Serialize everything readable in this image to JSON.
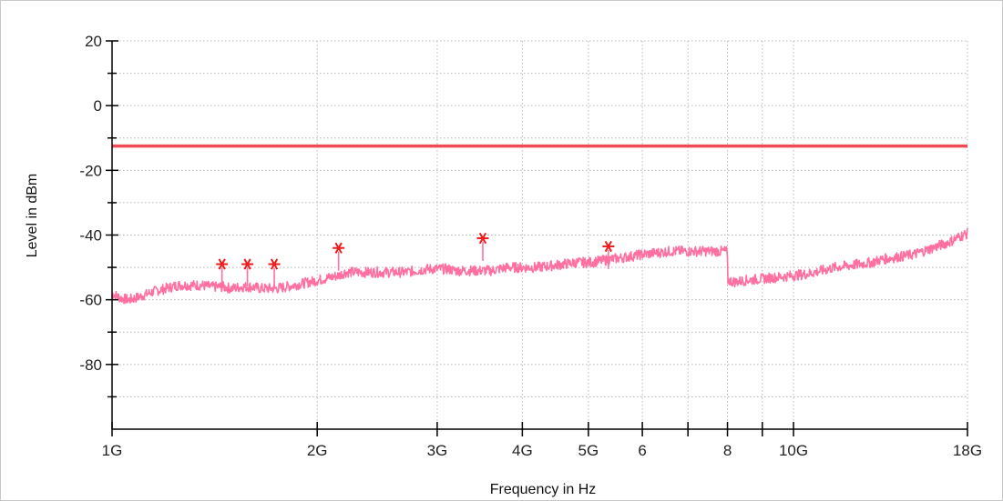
{
  "chart_data": {
    "type": "line",
    "title": "",
    "xlabel": "Frequency in Hz",
    "ylabel": "Level in dBm",
    "x_scale": "log",
    "xlim": [
      1000000000,
      18000000000
    ],
    "ylim": [
      -100,
      20
    ],
    "grid": true,
    "x_major_ticks": [
      {
        "value": 1000000000,
        "label": "1G"
      },
      {
        "value": 2000000000,
        "label": "2G"
      },
      {
        "value": 3000000000,
        "label": "3G"
      },
      {
        "value": 4000000000,
        "label": "4G"
      },
      {
        "value": 5000000000,
        "label": "5G"
      },
      {
        "value": 6000000000,
        "label": "6"
      },
      {
        "value": 8000000000,
        "label": "8"
      },
      {
        "value": 10000000000,
        "label": "10G"
      },
      {
        "value": 18000000000,
        "label": "18G"
      }
    ],
    "x_minor_ticks": [
      7000000000,
      9000000000
    ],
    "y_major_ticks": [
      {
        "value": 20,
        "label": "20"
      },
      {
        "value": 0,
        "label": "0"
      },
      {
        "value": -20,
        "label": "-20"
      },
      {
        "value": -40,
        "label": "-40"
      },
      {
        "value": -60,
        "label": "-60"
      },
      {
        "value": -80,
        "label": "-80"
      }
    ],
    "y_minor_ticks": [
      10,
      -10,
      -30,
      -50,
      -70,
      -90
    ],
    "limit_line": {
      "level": -12.5,
      "color": "#f04a55"
    },
    "series": [
      {
        "color": "#ff6fa0",
        "x": [
          1000000000,
          1030000000,
          1060000000,
          1100000000,
          1150000000,
          1200000000,
          1250000000,
          1300000000,
          1350000000,
          1400000000,
          1450000000,
          1500000000,
          1550000000,
          1600000000,
          1650000000,
          1700000000,
          1750000000,
          1800000000,
          1850000000,
          1900000000,
          1950000000,
          2000000000,
          2050000000,
          2100000000,
          2150000000,
          2200000000,
          2300000000,
          2400000000,
          2500000000,
          2600000000,
          2700000000,
          2800000000,
          2900000000,
          3000000000,
          3100000000,
          3200000000,
          3300000000,
          3400000000,
          3500000000,
          3600000000,
          3700000000,
          3800000000,
          3900000000,
          4000000000,
          4200000000,
          4400000000,
          4600000000,
          4800000000,
          5000000000,
          5200000000,
          5400000000,
          5600000000,
          5800000000,
          6000000000,
          6300000000,
          6600000000,
          7000000000,
          7400000000,
          7800000000,
          7990000000,
          8010000000,
          8200000000,
          8500000000,
          9000000000,
          9500000000,
          10000000000,
          10500000000,
          11000000000,
          11500000000,
          12000000000,
          12500000000,
          13000000000,
          13500000000,
          14000000000,
          14500000000,
          15000000000,
          15500000000,
          16000000000,
          16500000000,
          17000000000,
          17500000000,
          18000000000
        ],
        "y": [
          -58,
          -59.5,
          -60,
          -59,
          -57.5,
          -56.5,
          -55.5,
          -55.5,
          -55.5,
          -56,
          -56,
          -56.5,
          -56,
          -56,
          -56.5,
          -56.5,
          -56.5,
          -56,
          -55.5,
          -55,
          -54.5,
          -54,
          -53.5,
          -53,
          -52.5,
          -51.5,
          -51.5,
          -51.5,
          -51.5,
          -51.5,
          -51.5,
          -51,
          -50.5,
          -50.5,
          -50.5,
          -51,
          -51,
          -51,
          -51,
          -51,
          -50.5,
          -50,
          -50,
          -50,
          -50,
          -49.5,
          -49,
          -48.5,
          -48.5,
          -48,
          -47.5,
          -47,
          -46.5,
          -46,
          -45.5,
          -45,
          -45,
          -45,
          -45,
          -45,
          -54,
          -54.5,
          -54,
          -53.5,
          -53,
          -52.5,
          -52,
          -51,
          -50,
          -49.5,
          -49,
          -48.5,
          -47.5,
          -47,
          -46.5,
          -46,
          -45,
          -44,
          -43,
          -42,
          -40.5,
          -39.5
        ]
      }
    ],
    "markers": [
      {
        "x": 1450000000,
        "y": -49
      },
      {
        "x": 1580000000,
        "y": -49
      },
      {
        "x": 1730000000,
        "y": -49
      },
      {
        "x": 2150000000,
        "y": -44
      },
      {
        "x": 3500000000,
        "y": -41
      },
      {
        "x": 5350000000,
        "y": -43.5
      }
    ],
    "marker_color": "#ee1c1c"
  }
}
